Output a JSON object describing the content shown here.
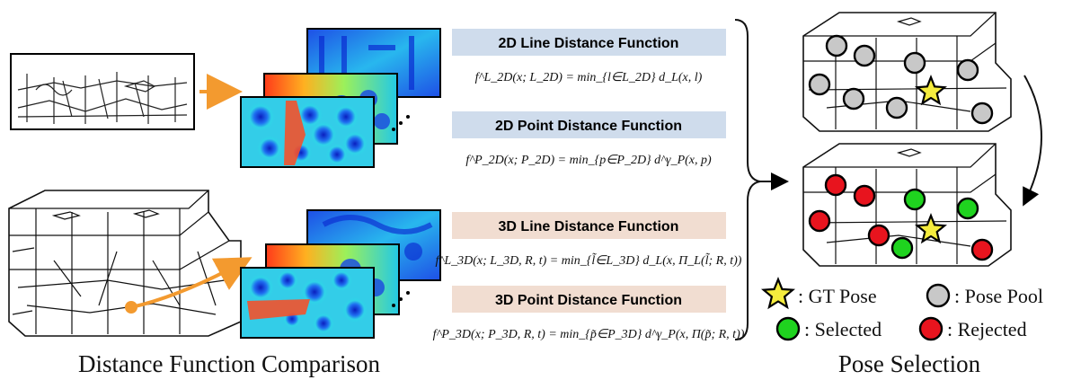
{
  "captions": {
    "left": "Distance Function Comparison",
    "right": "Pose Selection"
  },
  "functions": [
    {
      "title": "2D Line Distance Function",
      "formula": "f^L_2D(x; L_2D) = min_{l∈L_2D} d_L(x, l)",
      "band_color": "#cfdcec"
    },
    {
      "title": "2D Point Distance Function",
      "formula": "f^P_2D(x; P_2D) = min_{p∈P_2D} d^γ_P(x, p)",
      "band_color": "#cfdcec"
    },
    {
      "title": "3D Line Distance Function",
      "formula": "f^L_3D(x; L_3D, R, t) = min_{l̃∈L_3D} d_L(x, Π_L(l̃; R, t))",
      "band_color": "#f1ddd1"
    },
    {
      "title": "3D Point Distance Function",
      "formula": "f^P_3D(x; P_3D, R, t) = min_{p̃∈P_3D} d^γ_P(x, Π(p̃; R, t))",
      "band_color": "#f1ddd1"
    }
  ],
  "legend": {
    "gt_pose": ": GT Pose",
    "pose_pool": ": Pose Pool",
    "selected": ": Selected",
    "rejected": ": Rejected"
  },
  "colors": {
    "accent_arrow": "#f39a2f",
    "pose_pool": "#c8c8c8",
    "selected": "#1fd31f",
    "rejected": "#e8141e",
    "gt_star": "#f5ec3d"
  }
}
